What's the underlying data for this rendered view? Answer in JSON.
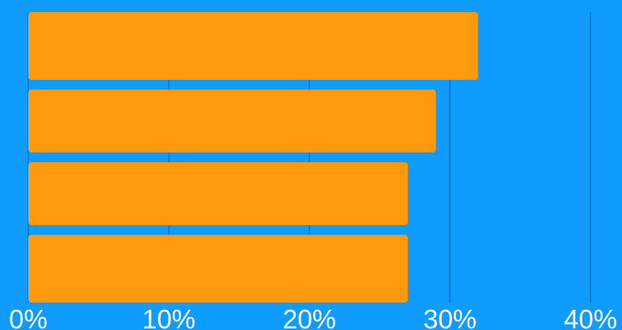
{
  "colors": {
    "background": "#0f9bff",
    "bar": "#ff990d",
    "grid": "#1473b3",
    "tick_text": "#ffffff"
  },
  "chart_data": {
    "type": "bar",
    "orientation": "horizontal",
    "categories": [
      "",
      "",
      "",
      ""
    ],
    "values": [
      32,
      29,
      27,
      27
    ],
    "title": "",
    "xlabel": "",
    "ylabel": "",
    "xlim": [
      0,
      40
    ],
    "grid": true,
    "x_ticks": [
      "0%",
      "10%",
      "20%",
      "30%",
      "40%"
    ],
    "x_tick_values": [
      0,
      10,
      20,
      30,
      40
    ],
    "legend": "none"
  }
}
